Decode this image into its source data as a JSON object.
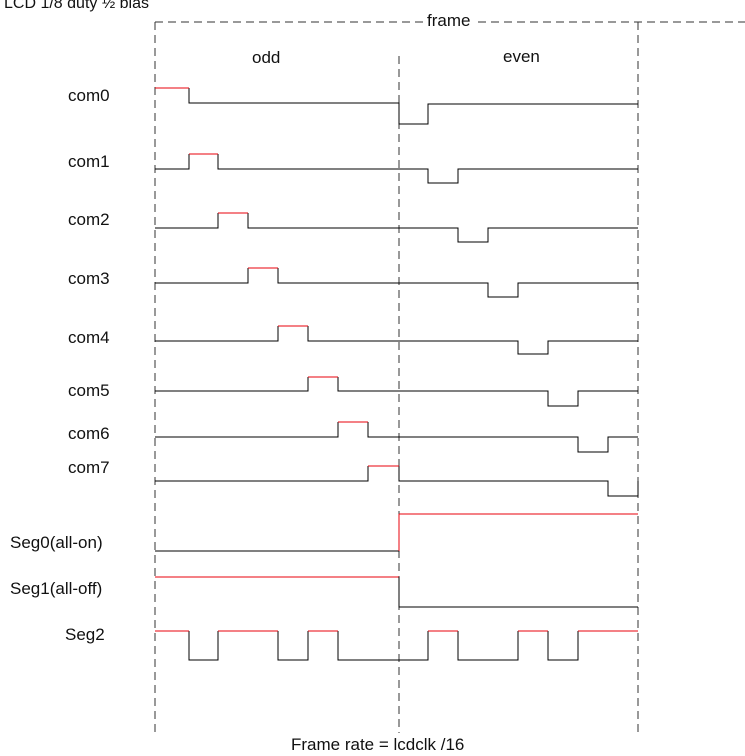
{
  "header": {
    "title": "LCD 1/8 duty ½ bias",
    "frame_label": "frame"
  },
  "sections": {
    "odd": "odd",
    "even": "even"
  },
  "signals": [
    {
      "id": "com0",
      "label": "com0"
    },
    {
      "id": "com1",
      "label": "com1"
    },
    {
      "id": "com2",
      "label": "com2"
    },
    {
      "id": "com3",
      "label": "com3"
    },
    {
      "id": "com4",
      "label": "com4"
    },
    {
      "id": "com5",
      "label": "com5"
    },
    {
      "id": "com6",
      "label": "com6"
    },
    {
      "id": "com7",
      "label": "com7"
    },
    {
      "id": "seg0",
      "label": "Seg0(all-on)"
    },
    {
      "id": "seg1",
      "label": "Seg1(all-off)"
    },
    {
      "id": "seg2",
      "label": "Seg2"
    }
  ],
  "footer": {
    "formula": "Frame rate = lcdclk /16"
  },
  "colors": {
    "line": "#000000",
    "highlight": "#e8000b",
    "dash": "#333333"
  }
}
